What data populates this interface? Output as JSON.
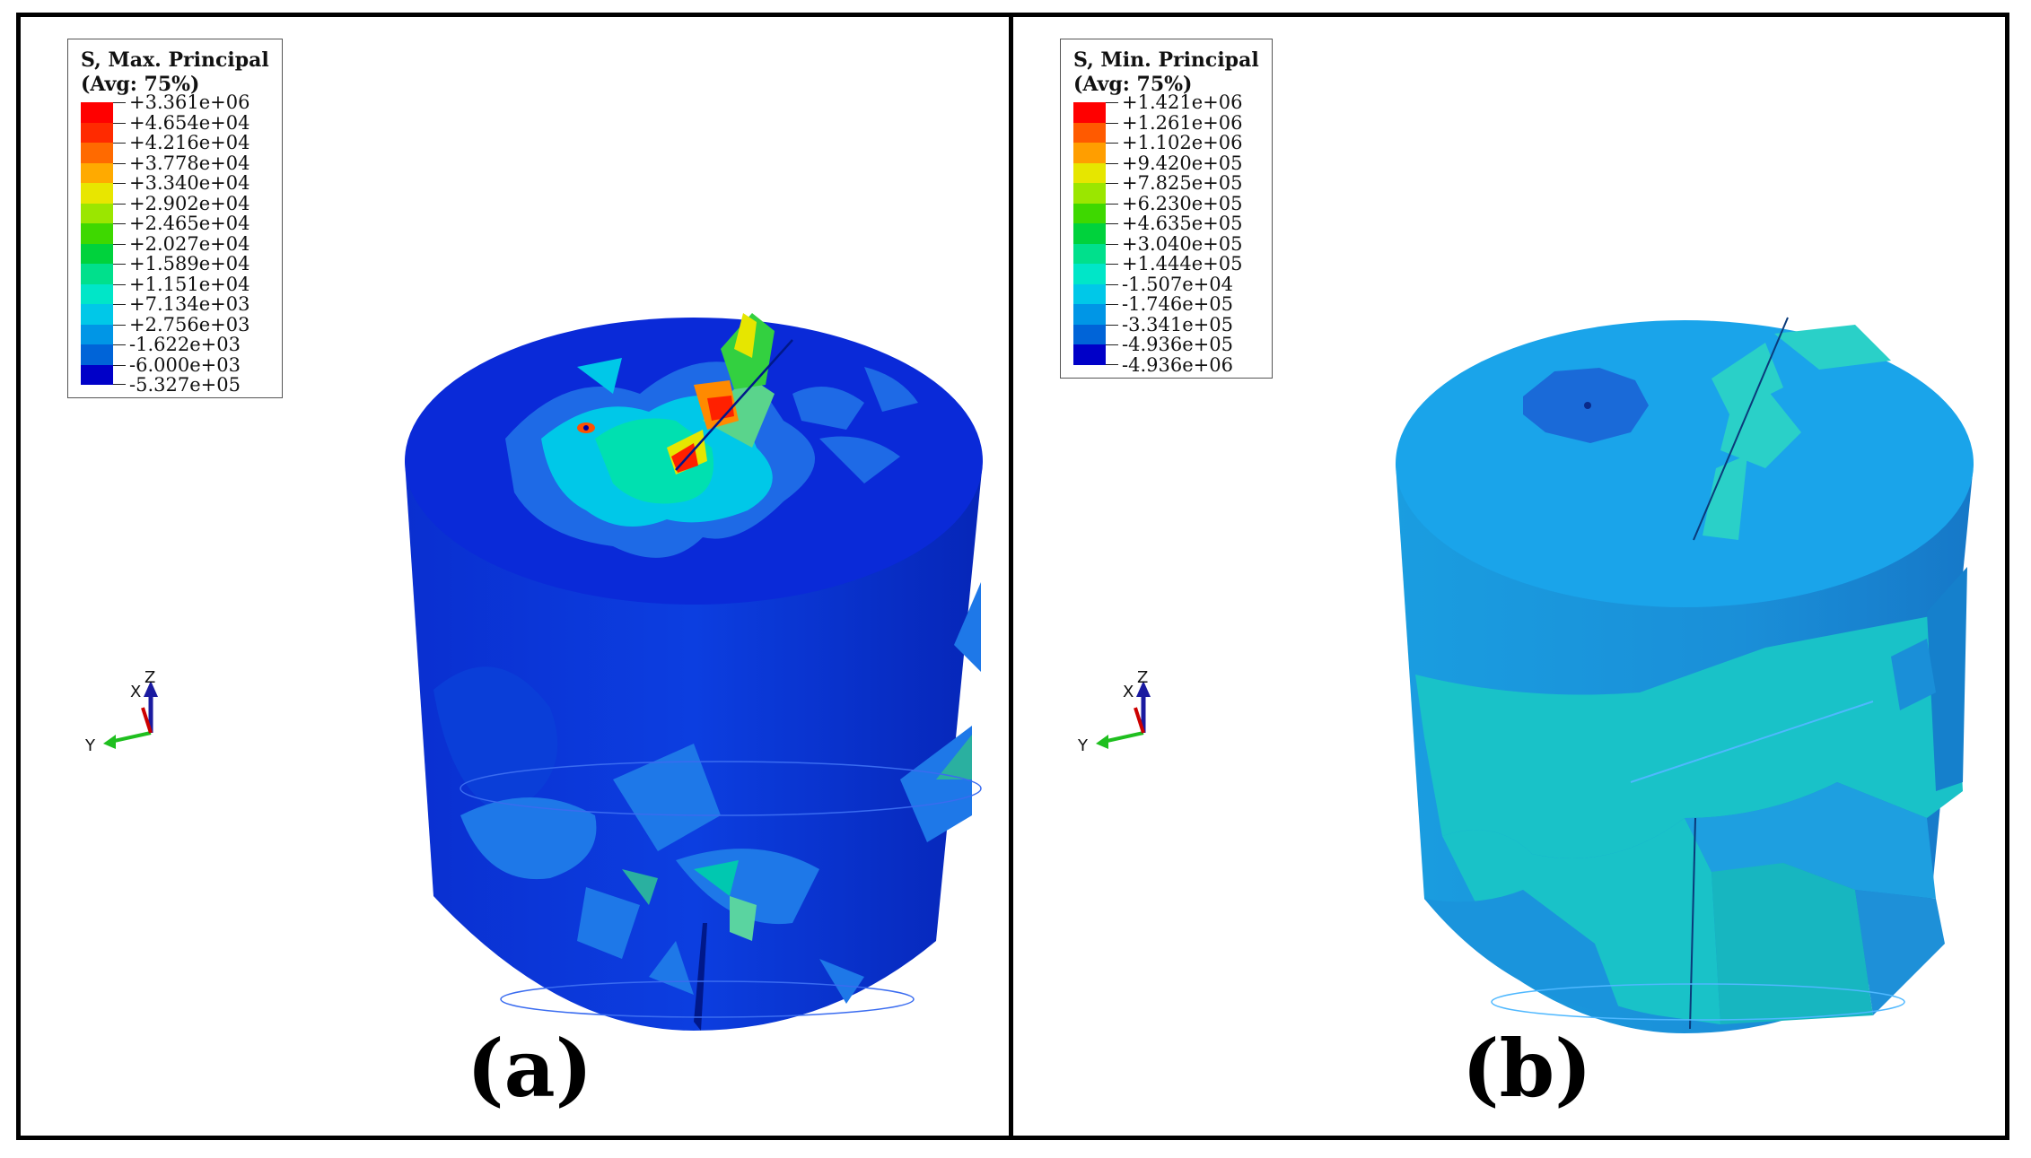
{
  "panels": [
    {
      "label": "(a)",
      "legend": {
        "title_line1": "S, Max. Principal",
        "title_line2": "(Avg: 75%)",
        "values": [
          "+3.361e+06",
          "+4.654e+04",
          "+4.216e+04",
          "+3.778e+04",
          "+3.340e+04",
          "+2.902e+04",
          "+2.465e+04",
          "+2.027e+04",
          "+1.589e+04",
          "+1.151e+04",
          "+7.134e+03",
          "+2.756e+03",
          "-1.622e+03",
          "-6.000e+03",
          "-5.327e+05"
        ]
      },
      "axes": {
        "x": "X",
        "y": "Y",
        "z": "Z"
      }
    },
    {
      "label": "(b)",
      "legend": {
        "title_line1": "S, Min. Principal",
        "title_line2": "(Avg: 75%)",
        "values": [
          "+1.421e+06",
          "+1.261e+06",
          "+1.102e+06",
          "+9.420e+05",
          "+7.825e+05",
          "+6.230e+05",
          "+4.635e+05",
          "+3.040e+05",
          "+1.444e+05",
          "-1.507e+04",
          "-1.746e+05",
          "-3.341e+05",
          "-4.936e+05",
          "-4.936e+06"
        ]
      },
      "axes": {
        "x": "X",
        "y": "Y",
        "z": "Z"
      }
    }
  ],
  "colors": {
    "contour_scale": [
      "#ff0000",
      "#ff5a00",
      "#ff9e00",
      "#e6e600",
      "#9be600",
      "#3ed800",
      "#00d23c",
      "#00e08c",
      "#00e6c8",
      "#00c8e8",
      "#0096e6",
      "#0064d8",
      "#0032cc",
      "#0000c8"
    ],
    "axis_x": "#cc0000",
    "axis_y": "#1fbf1f",
    "axis_z": "#1a1aa0"
  }
}
